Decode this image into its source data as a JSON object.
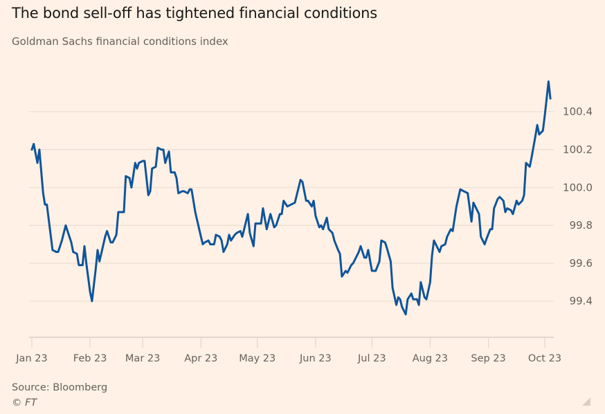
{
  "header": {
    "title": "The bond sell-off has tightened financial conditions",
    "subtitle": "Goldman Sachs financial conditions index"
  },
  "footer": {
    "source": "Source: Bloomberg",
    "copyright": "© FT"
  },
  "colors": {
    "background": "#fff1e5",
    "line": "#0f5499",
    "gridline": "#e9ddd3",
    "axis": "#e2d6cc",
    "text": "#66605c"
  },
  "chart_data": {
    "type": "line",
    "title": "The bond sell-off has tightened financial conditions",
    "subtitle": "Goldman Sachs financial conditions index",
    "xlabel": "",
    "ylabel": "",
    "x_unit": "days since 2023-01-01",
    "xlim": [
      -1,
      279
    ],
    "ylim": [
      99.2,
      100.6
    ],
    "grid": true,
    "y_axis_side": "right",
    "yticks": [
      99.4,
      99.6,
      99.8,
      100.0,
      100.2,
      100.4
    ],
    "ytick_labels": [
      "99.4",
      "99.6",
      "99.8",
      "100.0",
      "100.2",
      "100.4"
    ],
    "xticks": [
      {
        "label": "Jan 23",
        "day": 0
      },
      {
        "label": "Feb 23",
        "day": 31
      },
      {
        "label": "Mar 23",
        "day": 59
      },
      {
        "label": "Apr 23",
        "day": 90
      },
      {
        "label": "May 23",
        "day": 120
      },
      {
        "label": "Jun 23",
        "day": 151
      },
      {
        "label": "Jul 23",
        "day": 181
      },
      {
        "label": "Aug 23",
        "day": 212
      },
      {
        "label": "Sep 23",
        "day": 243
      },
      {
        "label": "Oct 23",
        "day": 273
      }
    ],
    "series": [
      {
        "name": "Goldman Sachs financial conditions index",
        "color": "#0f5499",
        "x": [
          0,
          1,
          3,
          4,
          6,
          7,
          8,
          11,
          13,
          14,
          16,
          18,
          21,
          22,
          24,
          25,
          27,
          28,
          29,
          31,
          32,
          34,
          35,
          36,
          39,
          40,
          42,
          43,
          45,
          46,
          49,
          50,
          52,
          53,
          55,
          56,
          57,
          59,
          60,
          62,
          63,
          64,
          66,
          67,
          69,
          70,
          71,
          73,
          74,
          76,
          77,
          78,
          80,
          81,
          83,
          84,
          85,
          87,
          90,
          91,
          92,
          94,
          95,
          97,
          98,
          100,
          101,
          102,
          104,
          105,
          106,
          108,
          109,
          111,
          112,
          115,
          116,
          118,
          119,
          122,
          123,
          125,
          127,
          129,
          130,
          132,
          133,
          134,
          136,
          140,
          143,
          144,
          146,
          147,
          149,
          150,
          151,
          153,
          154,
          155,
          157,
          158,
          160,
          161,
          163,
          164,
          165,
          167,
          168,
          170,
          171,
          172,
          174,
          175,
          177,
          178,
          179,
          181,
          183,
          185,
          186,
          188,
          189,
          191,
          192,
          194,
          195,
          196,
          197,
          199,
          200,
          202,
          203,
          205,
          206,
          207,
          209,
          210,
          212,
          213,
          214,
          216,
          217,
          218,
          220,
          221,
          223,
          224,
          226,
          228,
          230,
          232,
          234,
          235,
          238,
          239,
          241,
          242,
          244,
          245,
          246,
          248,
          249,
          251,
          252,
          253,
          255,
          256,
          258,
          259,
          261,
          262,
          263,
          265,
          266,
          268,
          269,
          270,
          272,
          273,
          275,
          276
        ],
        "values": [
          100.2,
          100.23,
          100.13,
          100.2,
          99.97,
          99.91,
          99.91,
          99.67,
          99.66,
          99.66,
          99.72,
          99.8,
          99.71,
          99.66,
          99.65,
          99.59,
          99.59,
          99.69,
          99.6,
          99.45,
          99.4,
          99.57,
          99.67,
          99.61,
          99.74,
          99.77,
          99.71,
          99.71,
          99.75,
          99.87,
          99.87,
          100.06,
          100.05,
          100.0,
          100.13,
          100.1,
          100.13,
          100.14,
          100.14,
          99.96,
          99.98,
          100.1,
          100.11,
          100.21,
          100.2,
          100.2,
          100.13,
          100.19,
          100.08,
          100.08,
          100.05,
          99.97,
          99.98,
          99.98,
          99.97,
          99.99,
          99.99,
          99.87,
          99.74,
          99.7,
          99.71,
          99.72,
          99.7,
          99.7,
          99.75,
          99.74,
          99.72,
          99.66,
          99.7,
          99.75,
          99.72,
          99.75,
          99.76,
          99.77,
          99.74,
          99.86,
          99.76,
          99.69,
          99.81,
          99.81,
          99.89,
          99.78,
          99.86,
          99.79,
          99.8,
          99.86,
          99.86,
          99.93,
          99.9,
          99.92,
          100.04,
          100.03,
          99.93,
          99.93,
          99.9,
          99.93,
          99.85,
          99.79,
          99.8,
          99.78,
          99.84,
          99.78,
          99.76,
          99.72,
          99.67,
          99.65,
          99.53,
          99.56,
          99.55,
          99.59,
          99.6,
          99.62,
          99.66,
          99.69,
          99.63,
          99.63,
          99.67,
          99.56,
          99.56,
          99.61,
          99.72,
          99.71,
          99.68,
          99.61,
          99.47,
          99.38,
          99.42,
          99.41,
          99.37,
          99.33,
          99.41,
          99.44,
          99.41,
          99.41,
          99.38,
          99.5,
          99.42,
          99.41,
          99.5,
          99.64,
          99.72,
          99.68,
          99.66,
          99.69,
          99.7,
          99.74,
          99.78,
          99.77,
          99.9,
          99.99,
          99.98,
          99.97,
          99.82,
          99.92,
          99.86,
          99.74,
          99.7,
          99.73,
          99.78,
          99.78,
          99.89,
          99.94,
          99.95,
          99.93,
          99.87,
          99.89,
          99.88,
          99.86,
          99.93,
          99.91,
          99.93,
          99.96,
          100.13,
          100.11,
          100.16,
          100.27,
          100.33,
          100.28,
          100.3,
          100.38,
          100.56,
          100.47
        ]
      }
    ]
  }
}
